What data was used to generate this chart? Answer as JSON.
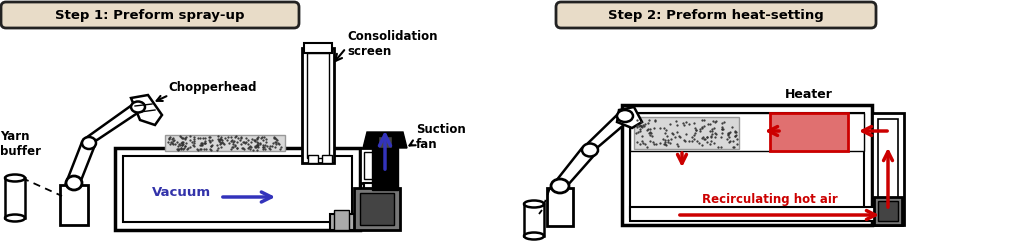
{
  "bg_color": "#ffffff",
  "step1_box_color": "#e8dcc8",
  "step2_box_color": "#e8dcc8",
  "step1_title": "Step 1: Preform spray-up",
  "step2_title": "Step 2: Preform heat-setting",
  "vacuum_text": "Vacuum",
  "vacuum_color": "#3333aa",
  "recirculating_text": "Recirculating hot air",
  "recirculating_color": "#cc0000",
  "heater_text": "Heater",
  "heater_fill": "#e07070",
  "consolidation_text": "Consolidation\nscreen",
  "suction_text": "Suction\nfan",
  "chopperhead_text": "Chopperhead",
  "yarn_text": "Yarn\nbuffer",
  "arrow_blue": "#3333bb",
  "arrow_red": "#cc0000",
  "border_color": "#222222",
  "gray_dark": "#444444",
  "gray_mid": "#777777",
  "gray_light": "#aaaaaa",
  "black": "#000000"
}
